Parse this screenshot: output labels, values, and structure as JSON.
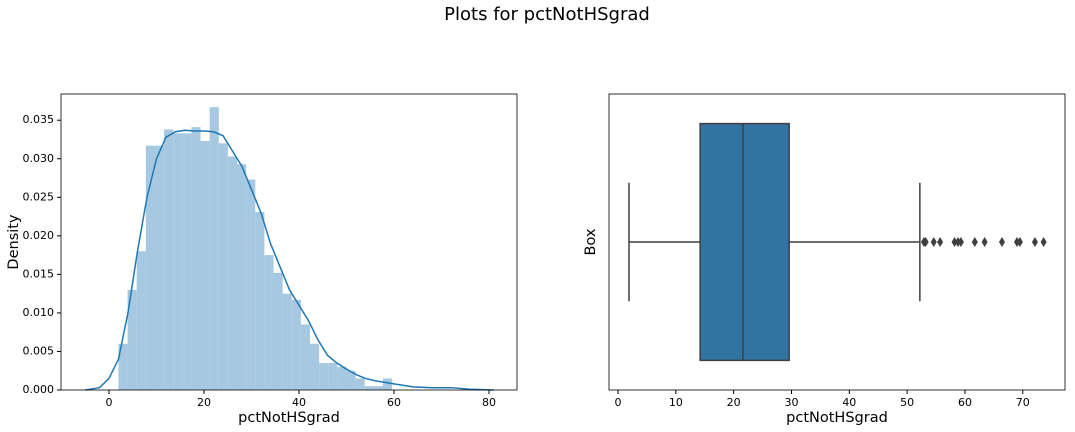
{
  "title": "Plots for pctNotHSgrad",
  "chart_data": [
    {
      "type": "histogram",
      "xlabel": "pctNotHSgrad",
      "ylabel": "Density",
      "color": "#a6c8e0",
      "bins": [
        2,
        3.92,
        5.84,
        7.76,
        9.68,
        11.6,
        13.52,
        15.44,
        17.36,
        19.28,
        21.2,
        23.12,
        25.04,
        26.96,
        28.88,
        30.8,
        32.72,
        34.64,
        36.56,
        38.48,
        40.4,
        42.32,
        44.24,
        46.16,
        48.08,
        50,
        51.92,
        53.84,
        55.76,
        57.68,
        59.6
      ],
      "counts": [
        0.006,
        0.013,
        0.018,
        0.0317,
        0.0317,
        0.0338,
        0.0333,
        0.0333,
        0.0341,
        0.0323,
        0.0367,
        0.032,
        0.0303,
        0.0293,
        0.0273,
        0.0231,
        0.0175,
        0.0152,
        0.0125,
        0.0117,
        0.0085,
        0.006,
        0.0035,
        0.0035,
        0.003,
        0.0025,
        0.0015,
        0.0005,
        0.0005,
        0.0015
      ],
      "kde": {
        "color": "#1f77b4",
        "x": [
          -5,
          -2,
          0,
          2,
          4,
          6,
          8,
          10,
          12,
          14,
          16,
          18,
          20,
          22,
          24,
          26,
          28,
          30,
          32,
          34,
          36,
          38,
          40,
          42,
          44,
          46,
          48,
          50,
          52,
          54,
          56,
          58,
          60,
          64,
          68,
          72,
          76,
          81
        ],
        "values": [
          0,
          0.0003,
          0.0015,
          0.004,
          0.01,
          0.018,
          0.025,
          0.03,
          0.0328,
          0.0335,
          0.0337,
          0.0336,
          0.0336,
          0.0335,
          0.033,
          0.031,
          0.029,
          0.026,
          0.023,
          0.019,
          0.016,
          0.013,
          0.011,
          0.009,
          0.0065,
          0.0045,
          0.0035,
          0.0027,
          0.002,
          0.0015,
          0.0012,
          0.001,
          0.0008,
          0.0004,
          0.0003,
          0.0003,
          0.0001,
          0
        ]
      },
      "xlim": [
        -10.1,
        85.9
      ],
      "xticks": [
        0,
        20,
        40,
        60,
        80
      ],
      "ylim": [
        0,
        0.0384
      ],
      "yticks": [
        {
          "value": 0,
          "label": "0.000"
        },
        {
          "value": 0.005,
          "label": "0.005"
        },
        {
          "value": 0.01,
          "label": "0.010"
        },
        {
          "value": 0.015,
          "label": "0.015"
        },
        {
          "value": 0.02,
          "label": "0.020"
        },
        {
          "value": 0.025,
          "label": "0.025"
        },
        {
          "value": 0.03,
          "label": "0.030"
        },
        {
          "value": 0.035,
          "label": "0.035"
        }
      ]
    },
    {
      "type": "box",
      "xlabel": "pctNotHSgrad",
      "ylabel": "Box",
      "color": "#3274a1",
      "min": 1.9,
      "q1": 14.2,
      "median": 21.6,
      "q3": 29.6,
      "max": 52.2,
      "outliers": [
        52.9,
        53.2,
        54.6,
        55.7,
        58.2,
        58.8,
        59.3,
        61.7,
        63.4,
        66.4,
        69.0,
        69.5,
        72.1,
        73.6
      ],
      "xlim": [
        -1.56,
        77.3
      ],
      "xticks": [
        0,
        10,
        20,
        30,
        40,
        50,
        60,
        70
      ]
    }
  ]
}
